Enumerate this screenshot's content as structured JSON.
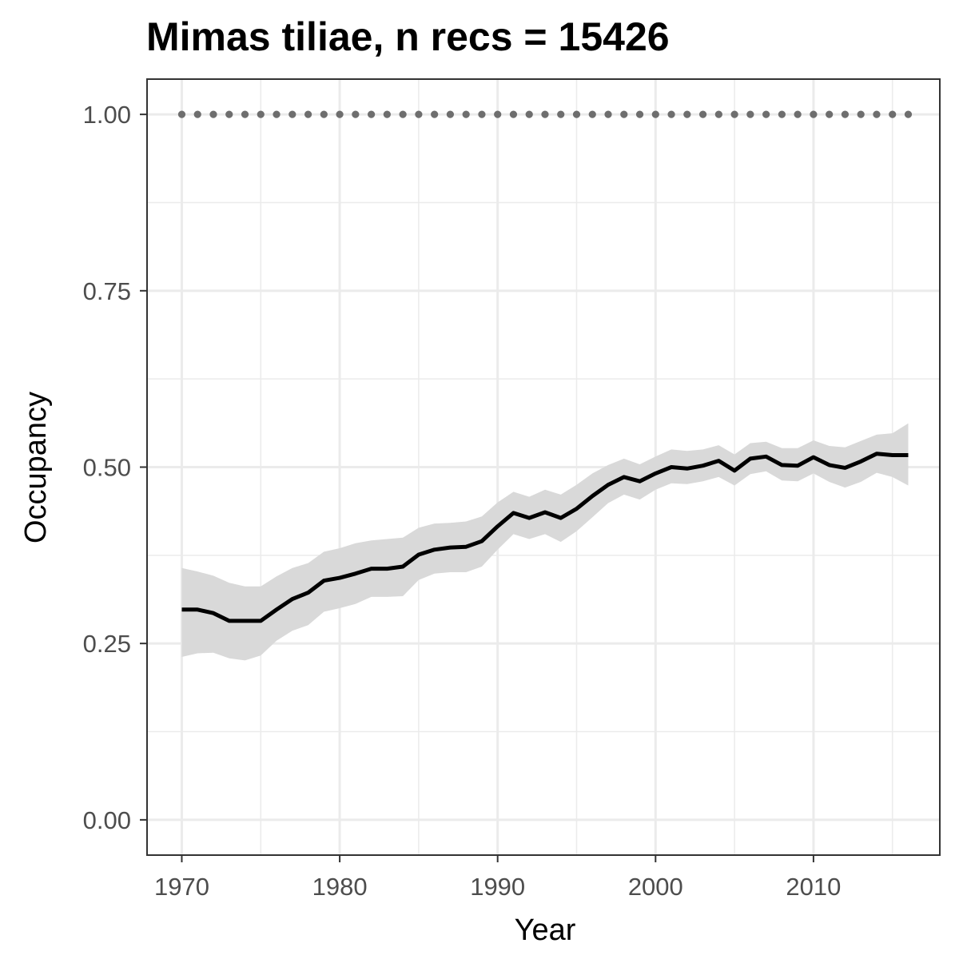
{
  "chart_data": {
    "type": "line",
    "title": "Mimas tiliae, n recs = 15426",
    "xlabel": "Year",
    "ylabel": "Occupancy",
    "xlim": [
      1967.8,
      2018
    ],
    "ylim": [
      -0.05,
      1.05
    ],
    "x_ticks": [
      1970,
      1980,
      1990,
      2000,
      2010
    ],
    "x_tick_labels": [
      "1970",
      "1980",
      "1990",
      "2000",
      "2010"
    ],
    "y_ticks": [
      0,
      0.25,
      0.5,
      0.75,
      1.0
    ],
    "y_tick_labels": [
      "0.00",
      "0.25",
      "0.50",
      "0.75",
      "1.00"
    ],
    "y_minor_ticks": [
      0.125,
      0.375,
      0.625,
      0.875
    ],
    "x_minor_ticks": [
      1975,
      1985,
      1995,
      2005,
      2015
    ],
    "grid": true,
    "colors": {
      "line": "#000000",
      "ribbon": "#d9d9d9",
      "dotted_line": "#6e6e6e",
      "panel_border": "#333333",
      "grid": "#ebebeb"
    },
    "years": [
      1970,
      1971,
      1972,
      1973,
      1974,
      1975,
      1976,
      1977,
      1978,
      1979,
      1980,
      1981,
      1982,
      1983,
      1984,
      1985,
      1986,
      1987,
      1988,
      1989,
      1990,
      1991,
      1992,
      1993,
      1994,
      1995,
      1996,
      1997,
      1998,
      1999,
      2000,
      2001,
      2002,
      2003,
      2004,
      2005,
      2006,
      2007,
      2008,
      2009,
      2010,
      2011,
      2012,
      2013,
      2014,
      2015,
      2016
    ],
    "series": [
      {
        "role": "occupancy-mean",
        "values": [
          0.298,
          0.298,
          0.293,
          0.282,
          0.282,
          0.282,
          0.298,
          0.313,
          0.322,
          0.339,
          0.343,
          0.349,
          0.356,
          0.356,
          0.359,
          0.376,
          0.383,
          0.386,
          0.387,
          0.395,
          0.416,
          0.435,
          0.428,
          0.436,
          0.428,
          0.441,
          0.459,
          0.475,
          0.486,
          0.48,
          0.491,
          0.5,
          0.498,
          0.502,
          0.509,
          0.495,
          0.512,
          0.515,
          0.503,
          0.502,
          0.514,
          0.503,
          0.499,
          0.508,
          0.519,
          0.517,
          0.517
        ]
      },
      {
        "role": "credible-interval-upper",
        "values": [
          0.357,
          0.352,
          0.346,
          0.336,
          0.331,
          0.331,
          0.345,
          0.357,
          0.364,
          0.38,
          0.385,
          0.392,
          0.396,
          0.398,
          0.4,
          0.414,
          0.42,
          0.421,
          0.423,
          0.43,
          0.45,
          0.465,
          0.458,
          0.468,
          0.461,
          0.475,
          0.491,
          0.503,
          0.512,
          0.504,
          0.515,
          0.525,
          0.523,
          0.525,
          0.531,
          0.518,
          0.534,
          0.536,
          0.527,
          0.527,
          0.538,
          0.53,
          0.528,
          0.537,
          0.546,
          0.548,
          0.562
        ]
      },
      {
        "role": "credible-interval-lower",
        "values": [
          0.231,
          0.236,
          0.237,
          0.229,
          0.226,
          0.233,
          0.254,
          0.268,
          0.276,
          0.295,
          0.3,
          0.306,
          0.316,
          0.316,
          0.317,
          0.34,
          0.349,
          0.351,
          0.351,
          0.359,
          0.383,
          0.405,
          0.398,
          0.405,
          0.394,
          0.409,
          0.429,
          0.449,
          0.461,
          0.454,
          0.468,
          0.477,
          0.476,
          0.48,
          0.486,
          0.474,
          0.49,
          0.494,
          0.481,
          0.48,
          0.491,
          0.479,
          0.471,
          0.479,
          0.492,
          0.486,
          0.474
        ]
      },
      {
        "role": "reference-dotted",
        "values": [
          1,
          1,
          1,
          1,
          1,
          1,
          1,
          1,
          1,
          1,
          1,
          1,
          1,
          1,
          1,
          1,
          1,
          1,
          1,
          1,
          1,
          1,
          1,
          1,
          1,
          1,
          1,
          1,
          1,
          1,
          1,
          1,
          1,
          1,
          1,
          1,
          1,
          1,
          1,
          1,
          1,
          1,
          1,
          1,
          1,
          1,
          1
        ]
      }
    ]
  }
}
